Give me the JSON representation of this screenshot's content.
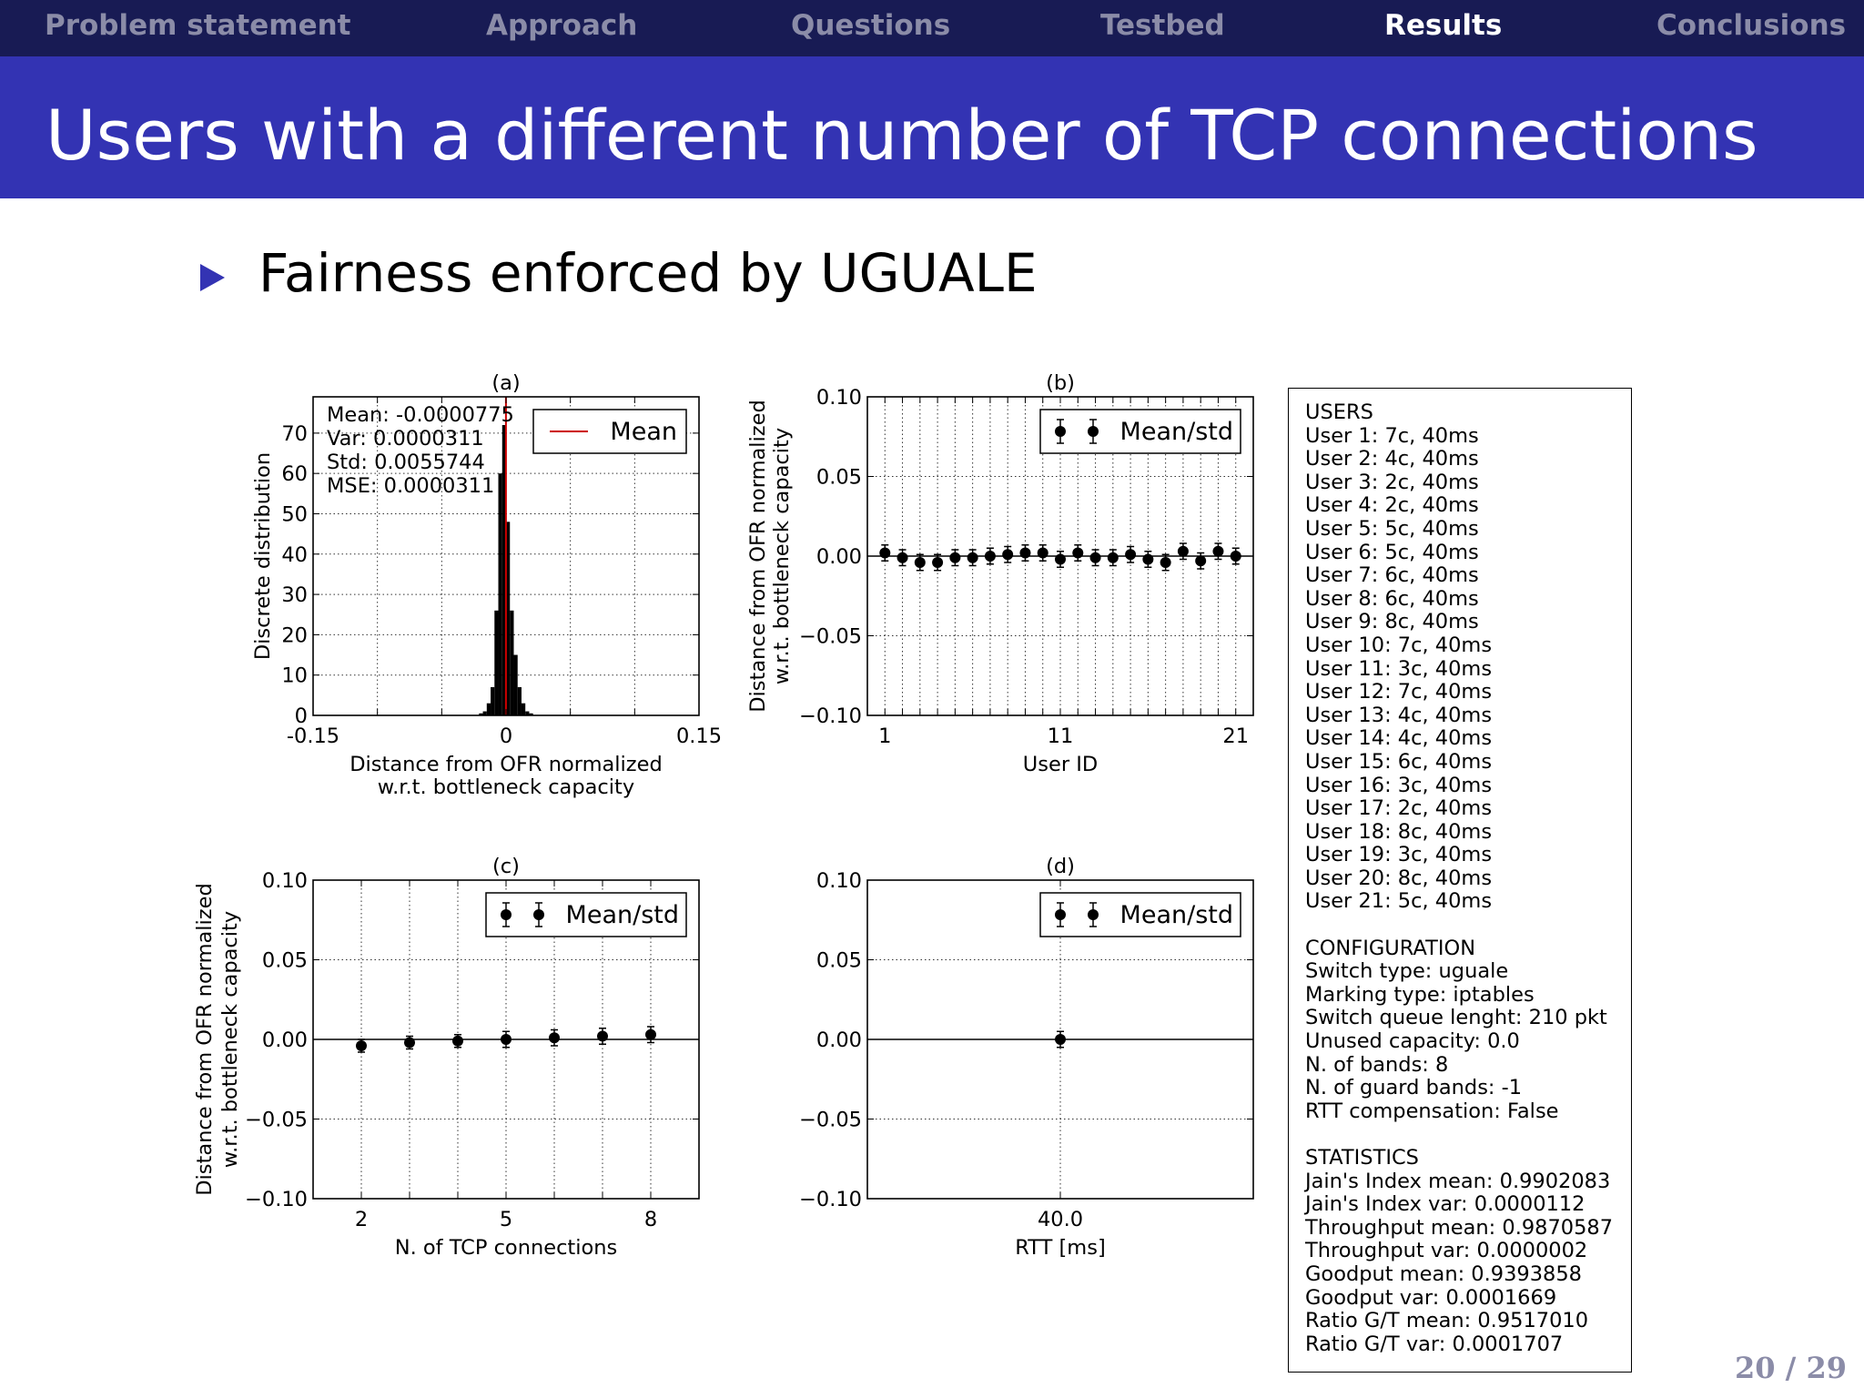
{
  "nav": {
    "items": [
      "Problem statement",
      "Approach",
      "Questions",
      "Testbed",
      "Results",
      "Conclusions"
    ],
    "active": "Results"
  },
  "slide": {
    "title": "Users with a different number of TCP connections",
    "bullet": "Fairness enforced by UGUALE"
  },
  "colors": {
    "nav_bg": "#181b54",
    "title_bg": "#3333b3",
    "nav_inactive": "#8b8ca8",
    "mean_line": "#cc0000"
  },
  "chart_data": [
    {
      "id": "a",
      "type": "bar",
      "title": "(a)",
      "xlabel": [
        "Distance from OFR normalized",
        "w.r.t. bottleneck capacity"
      ],
      "ylabel": "Discrete distribution",
      "xlim": [
        -0.15,
        0.15
      ],
      "ylim": [
        0,
        79
      ],
      "xticks": [
        -0.15,
        0,
        0.15
      ],
      "xtick_labels": [
        "-0.15",
        "0",
        "0.15"
      ],
      "yticks": [
        0,
        10,
        20,
        30,
        40,
        50,
        60,
        70
      ],
      "grid": true,
      "bin_width": 0.003,
      "bins": [
        {
          "x": -0.0195,
          "value": 0.5
        },
        {
          "x": -0.0165,
          "value": 1
        },
        {
          "x": -0.0135,
          "value": 3
        },
        {
          "x": -0.0105,
          "value": 7
        },
        {
          "x": -0.0075,
          "value": 26
        },
        {
          "x": -0.0045,
          "value": 60
        },
        {
          "x": -0.0015,
          "value": 72
        },
        {
          "x": 0.0015,
          "value": 48
        },
        {
          "x": 0.0045,
          "value": 26
        },
        {
          "x": 0.0075,
          "value": 15
        },
        {
          "x": 0.0105,
          "value": 7
        },
        {
          "x": 0.0135,
          "value": 3
        },
        {
          "x": 0.0165,
          "value": 1
        },
        {
          "x": 0.0195,
          "value": 0.5
        }
      ],
      "mean_line": -7.75e-05,
      "legend": [
        "Mean"
      ],
      "legend_placement": "top-right",
      "annotations": [
        "Mean: -0.0000775",
        "Var: 0.0000311",
        "Std: 0.0055744",
        "MSE: 0.0000311"
      ]
    },
    {
      "id": "b",
      "type": "scatter",
      "title": "(b)",
      "xlabel": "User ID",
      "ylabel": [
        "Distance from OFR normalized",
        "w.r.t. bottleneck capacity"
      ],
      "xlim": [
        0,
        22
      ],
      "ylim": [
        -0.1,
        0.1
      ],
      "xticks": [
        1,
        11,
        21
      ],
      "yticks": [
        0.1,
        0.05,
        0.0,
        -0.05,
        -0.1
      ],
      "ytick_labels": [
        "0.10",
        "0.05",
        "0.00",
        "−0.05",
        "−0.10"
      ],
      "grid": true,
      "legend": [
        "Mean/std"
      ],
      "legend_placement": "top-right",
      "x": [
        1,
        2,
        3,
        4,
        5,
        6,
        7,
        8,
        9,
        10,
        11,
        12,
        13,
        14,
        15,
        16,
        17,
        18,
        19,
        20,
        21
      ],
      "y": [
        0.002,
        -0.001,
        -0.004,
        -0.004,
        -0.001,
        -0.001,
        0.0,
        0.001,
        0.002,
        0.002,
        -0.002,
        0.002,
        -0.001,
        -0.001,
        0.001,
        -0.002,
        -0.004,
        0.003,
        -0.003,
        0.003,
        0.0
      ],
      "err": [
        0.005,
        0.005,
        0.005,
        0.005,
        0.005,
        0.005,
        0.005,
        0.005,
        0.005,
        0.005,
        0.005,
        0.005,
        0.005,
        0.005,
        0.005,
        0.005,
        0.005,
        0.005,
        0.005,
        0.005,
        0.005
      ]
    },
    {
      "id": "c",
      "type": "scatter",
      "title": "(c)",
      "xlabel": "N. of TCP connections",
      "ylabel": [
        "Distance from OFR normalized",
        "w.r.t. bottleneck capacity"
      ],
      "xlim": [
        1,
        9
      ],
      "ylim": [
        -0.1,
        0.1
      ],
      "xticks": [
        2,
        5,
        8
      ],
      "yticks": [
        0.1,
        0.05,
        0.0,
        -0.05,
        -0.1
      ],
      "ytick_labels": [
        "0.10",
        "0.05",
        "0.00",
        "−0.05",
        "−0.10"
      ],
      "grid": true,
      "legend": [
        "Mean/std"
      ],
      "legend_placement": "top-right",
      "x": [
        2,
        3,
        4,
        5,
        6,
        7,
        8
      ],
      "y": [
        -0.004,
        -0.002,
        -0.001,
        0.0,
        0.001,
        0.002,
        0.003
      ],
      "err": [
        0.004,
        0.004,
        0.004,
        0.005,
        0.005,
        0.005,
        0.005
      ]
    },
    {
      "id": "d",
      "type": "scatter",
      "title": "(d)",
      "xlabel": "RTT [ms]",
      "ylabel": "",
      "xlim": [
        39,
        41
      ],
      "ylim": [
        -0.1,
        0.1
      ],
      "xticks": [
        40.0
      ],
      "xtick_labels": [
        "40.0"
      ],
      "yticks": [
        0.1,
        0.05,
        0.0,
        -0.05,
        -0.1
      ],
      "ytick_labels": [
        "0.10",
        "0.05",
        "0.00",
        "−0.05",
        "−0.10"
      ],
      "grid": true,
      "legend": [
        "Mean/std"
      ],
      "legend_placement": "top-right",
      "x": [
        40.0
      ],
      "y": [
        0.0
      ],
      "err": [
        0.005
      ]
    }
  ],
  "info_panel": {
    "sections": [
      [
        "USERS",
        "User 1: 7c, 40ms",
        "User 2: 4c, 40ms",
        "User 3: 2c, 40ms",
        "User 4: 2c, 40ms",
        "User 5: 5c, 40ms",
        "User 6: 5c, 40ms",
        "User 7: 6c, 40ms",
        "User 8: 6c, 40ms",
        "User 9: 8c, 40ms",
        "User 10: 7c, 40ms",
        "User 11: 3c, 40ms",
        "User 12: 7c, 40ms",
        "User 13: 4c, 40ms",
        "User 14: 4c, 40ms",
        "User 15: 6c, 40ms",
        "User 16: 3c, 40ms",
        "User 17: 2c, 40ms",
        "User 18: 8c, 40ms",
        "User 19: 3c, 40ms",
        "User 20: 8c, 40ms",
        "User 21: 5c, 40ms"
      ],
      [
        "CONFIGURATION",
        "Switch type: uguale",
        "Marking type: iptables",
        "Switch queue lenght: 210 pkt",
        "Unused capacity: 0.0",
        "N. of bands: 8",
        "N. of guard bands: -1",
        "RTT compensation: False"
      ],
      [
        "STATISTICS",
        "Jain's Index mean: 0.9902083",
        "Jain's Index var: 0.0000112",
        "Throughput mean: 0.9870587",
        "Throughput var: 0.0000002",
        "Goodput mean: 0.9393858",
        "Goodput var: 0.0001669",
        "Ratio G/T mean: 0.9517010",
        "Ratio G/T var: 0.0001707"
      ]
    ]
  },
  "footer": {
    "page": "20 / 29"
  }
}
